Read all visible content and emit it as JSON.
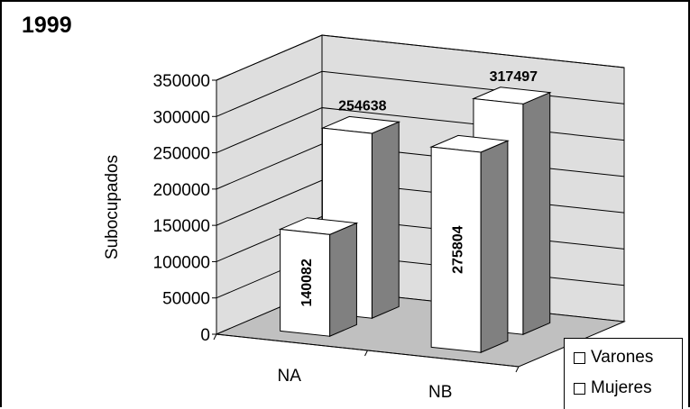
{
  "chart_data": {
    "type": "bar",
    "title": "1999",
    "ylabel": "Subocupados",
    "xlabel": "",
    "categories": [
      "NA",
      "NB"
    ],
    "series": [
      {
        "name": "Varones",
        "values": [
          140082,
          275804
        ]
      },
      {
        "name": "Mujeres",
        "values": [
          254638,
          317497
        ]
      }
    ],
    "ylim": [
      0,
      350000
    ],
    "yticks": [
      0,
      50000,
      100000,
      150000,
      200000,
      250000,
      300000,
      350000
    ],
    "ytick_labels": [
      "0",
      "50000",
      "100000",
      "150000",
      "200000",
      "250000",
      "300000",
      "350000"
    ],
    "grid": true,
    "legend_position": "bottom-right",
    "style": "3d-column",
    "colors": {
      "bar_front": "#ffffff",
      "bar_side": "#808080",
      "bar_top": "#ffffff",
      "floor": "#c0c0c0",
      "walls": "#dedede"
    }
  }
}
